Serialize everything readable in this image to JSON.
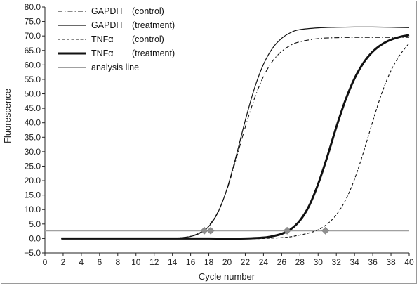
{
  "chart_data": {
    "type": "line",
    "title": "",
    "xlabel": "Cycle number",
    "ylabel": "Fluorescence",
    "xlim": [
      0,
      40
    ],
    "ylim": [
      -5,
      80
    ],
    "xticks": [
      0,
      2,
      4,
      6,
      8,
      10,
      12,
      14,
      16,
      18,
      20,
      22,
      24,
      26,
      28,
      30,
      32,
      34,
      36,
      38,
      40
    ],
    "yticks": [
      -5,
      0,
      5,
      10,
      15,
      20,
      25,
      30,
      35,
      40,
      45,
      50,
      55,
      60,
      65,
      70,
      75,
      80
    ],
    "xtick_labels": [
      "0",
      "2",
      "4",
      "6",
      "8",
      "10",
      "12",
      "14",
      "16",
      "18",
      "20",
      "22",
      "24",
      "26",
      "28",
      "30",
      "32",
      "34",
      "36",
      "38",
      "40"
    ],
    "ytick_labels": [
      "−5.0",
      "0.0",
      "5.0",
      "10.0",
      "15.0",
      "20.0",
      "25.0",
      "30.0",
      "35.0",
      "40.0",
      "45.0",
      "50.0",
      "55.0",
      "60.0",
      "65.0",
      "70.0",
      "75.0",
      "80.0"
    ],
    "grid": false,
    "legend_position": "top-left",
    "analysis_line": {
      "name": "analysis line",
      "y": 2.7,
      "color": "#a0a0a0"
    },
    "series": [
      {
        "name": "GAPDH",
        "condition": "(control)",
        "style": "dash-dot",
        "color": "#111111",
        "x": [
          1.8,
          8,
          12,
          14,
          15,
          16,
          17,
          18,
          19,
          20,
          21,
          22,
          23,
          24,
          25,
          26,
          27,
          28,
          30,
          32,
          34,
          36,
          38,
          40
        ],
        "y": [
          0,
          0,
          0,
          0.1,
          0.3,
          0.8,
          2.0,
          4.5,
          9.2,
          17,
          27.5,
          38.5,
          48.3,
          56,
          61.3,
          64.7,
          66.8,
          68,
          69.1,
          69.4,
          69.5,
          69.5,
          69.5,
          69.5
        ]
      },
      {
        "name": "GAPDH",
        "condition": "(treatment)",
        "style": "solid-thin",
        "color": "#111111",
        "x": [
          1.8,
          8,
          12,
          14,
          15,
          16,
          17,
          18,
          19,
          20,
          21,
          22,
          23,
          24,
          25,
          26,
          27,
          28,
          30,
          32,
          34,
          36,
          38,
          40
        ],
        "y": [
          0,
          0,
          0,
          0.1,
          0.3,
          0.7,
          1.8,
          4.2,
          9.0,
          17.2,
          28.5,
          40.8,
          51.8,
          60.2,
          65.8,
          69.2,
          71.2,
          72.2,
          72.8,
          73.0,
          73.1,
          73.1,
          73.0,
          72.9
        ]
      },
      {
        "name": "TNFα",
        "condition": "(control)",
        "style": "dashed",
        "color": "#111111",
        "x": [
          1.8,
          10,
          18,
          20,
          22,
          24,
          26,
          27,
          28,
          29,
          30,
          31,
          32,
          33,
          34,
          35,
          36,
          37,
          38,
          39,
          40
        ],
        "y": [
          0,
          0,
          0,
          0,
          -0.1,
          0,
          0.3,
          0.6,
          1.2,
          1.9,
          3.0,
          5.0,
          8.2,
          13.2,
          20.5,
          30,
          40.5,
          50.3,
          58,
          63.5,
          67.5
        ]
      },
      {
        "name": "TNFα",
        "condition": "(treatment)",
        "style": "solid-thick",
        "color": "#111111",
        "x": [
          1.8,
          10,
          18,
          20,
          22,
          24,
          25,
          26,
          27,
          28,
          29,
          30,
          31,
          32,
          33,
          34,
          35,
          36,
          37,
          38,
          39,
          40
        ],
        "y": [
          0,
          0,
          0,
          -0.1,
          0,
          0.3,
          0.8,
          1.6,
          3.2,
          6.2,
          11.2,
          18.8,
          28.2,
          38.5,
          47.8,
          55.3,
          60.8,
          64.6,
          67.1,
          68.7,
          69.7,
          70.3
        ]
      }
    ],
    "markers": [
      {
        "x": 17.5,
        "y": 2.7,
        "shape": "diamond",
        "color": "#8f8f8f"
      },
      {
        "x": 18.2,
        "y": 2.7,
        "shape": "diamond",
        "color": "#8f8f8f"
      },
      {
        "x": 26.6,
        "y": 2.7,
        "shape": "diamond",
        "color": "#8f8f8f"
      },
      {
        "x": 30.8,
        "y": 2.7,
        "shape": "diamond",
        "color": "#8f8f8f"
      }
    ]
  }
}
